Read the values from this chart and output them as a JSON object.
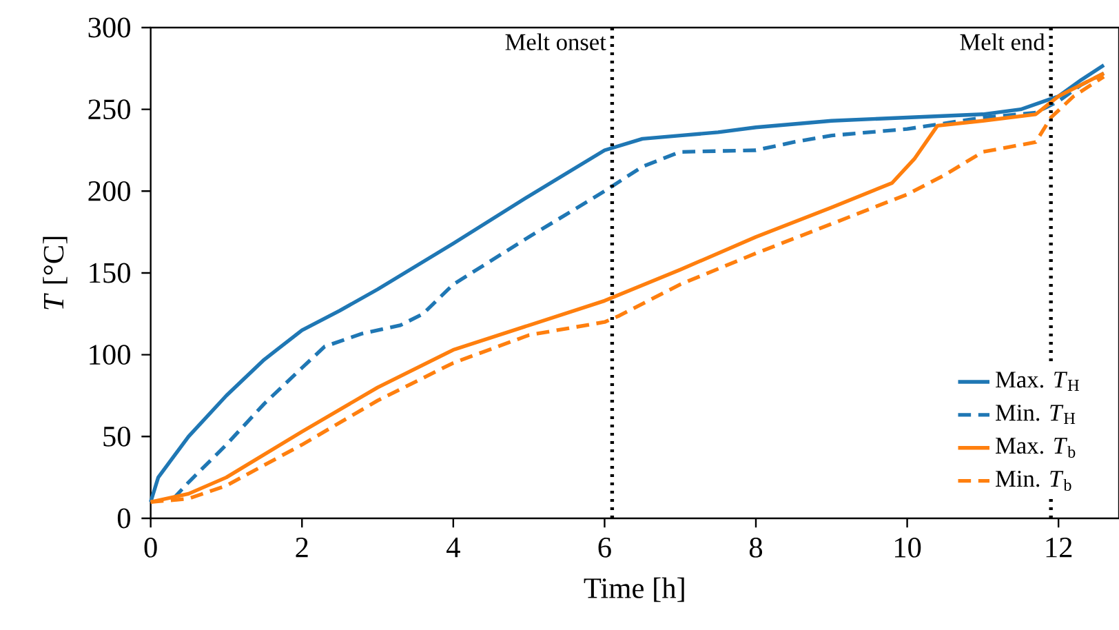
{
  "chart_data": {
    "type": "line",
    "xlabel": "Time [h]",
    "ylabel": "*T* [°C]",
    "xlim": [
      0,
      12.8
    ],
    "ylim": [
      0,
      300
    ],
    "xticks": [
      0,
      2,
      4,
      6,
      8,
      10,
      12
    ],
    "yticks": [
      0,
      50,
      100,
      150,
      200,
      250,
      300
    ],
    "grid": false,
    "legend": "bottom right",
    "marker": "none",
    "series": [
      {
        "name": "Max. *T*$_{H}$",
        "color": "#1f77b4",
        "line_style": "solid",
        "x": [
          0,
          0.1,
          0.5,
          1,
          1.5,
          2,
          2.5,
          3,
          4,
          5,
          6,
          6.5,
          7,
          7.5,
          8,
          9,
          10,
          11,
          11.5,
          12,
          12.3,
          12.6
        ],
        "values": [
          10,
          25,
          50,
          75,
          97,
          115,
          127,
          140,
          168,
          197,
          225,
          232,
          234,
          236,
          239,
          243,
          245,
          247,
          250,
          258,
          268,
          277
        ]
      },
      {
        "name": "Min. *T*$_{H}$",
        "color": "#1f77b4",
        "line_style": "dashed",
        "x": [
          0.3,
          0.5,
          1,
          1.5,
          2,
          2.3,
          2.8,
          3.3,
          3.6,
          4,
          5,
          6,
          6.5,
          7,
          8,
          8.5,
          9,
          10,
          11,
          11.7,
          12,
          12.3,
          12.6
        ],
        "values": [
          12,
          22,
          45,
          70,
          92,
          105,
          113,
          118,
          125,
          143,
          172,
          200,
          215,
          224,
          225,
          230,
          234,
          238,
          245,
          248,
          255,
          265,
          272
        ]
      },
      {
        "name": "Max. *T*$_{b}$",
        "color": "#ff7f0e",
        "line_style": "solid",
        "x": [
          0,
          0.5,
          1,
          2,
          3,
          4,
          5,
          6,
          7,
          8,
          9,
          9.8,
          10.1,
          10.4,
          11,
          11.7,
          12,
          12.6
        ],
        "values": [
          10,
          15,
          25,
          53,
          80,
          103,
          118,
          133,
          152,
          172,
          190,
          205,
          220,
          240,
          243,
          247,
          258,
          272
        ]
      },
      {
        "name": "Min. *T*$_{b}$",
        "color": "#ff7f0e",
        "line_style": "dashed",
        "x": [
          0,
          0.5,
          1,
          2,
          3,
          4,
          5,
          6,
          6.2,
          7,
          8,
          9,
          10,
          10.5,
          11,
          11.7,
          11.9,
          12.2,
          12.6
        ],
        "values": [
          10,
          12,
          20,
          45,
          72,
          95,
          112,
          120,
          124,
          143,
          162,
          180,
          198,
          210,
          224,
          230,
          245,
          258,
          270
        ]
      }
    ],
    "ref_lines": [
      {
        "axis": "x",
        "value": 6.1,
        "label": "Melt onset",
        "color": "#000000",
        "line_style": "dotted"
      },
      {
        "axis": "x",
        "value": 11.9,
        "label": "Melt end",
        "color": "#000000",
        "line_style": "dotted"
      }
    ]
  }
}
